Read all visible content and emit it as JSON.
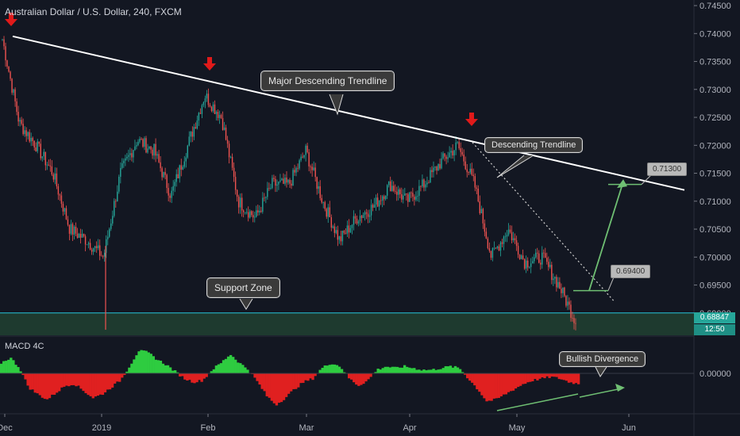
{
  "header": {
    "title": "Australian Dollar / U.S. Dollar, 240, FXCM"
  },
  "macd": {
    "title": "MACD 4C",
    "zero_label": "0.00000"
  },
  "price_axis": {
    "ticks": [
      "0.74500",
      "0.74000",
      "0.73500",
      "0.73000",
      "0.72500",
      "0.72000",
      "0.71500",
      "0.71000",
      "0.70500",
      "0.70000",
      "0.69500",
      "0.69000"
    ],
    "last_price": "0.68847",
    "countdown": "12:50"
  },
  "time_axis": {
    "labels": [
      "Dec",
      "2019",
      "Feb",
      "Mar",
      "Apr",
      "May",
      "Jun"
    ]
  },
  "annotations": {
    "major_trendline": "Major Descending Trendline",
    "descending_trendline": "Descending Trendline",
    "support_zone": "Support Zone",
    "bullish_divergence": "Bullish Divergence",
    "target_1": "0.69400",
    "target_2": "0.71300"
  },
  "colors": {
    "background": "#131722",
    "bull": "#26a69a",
    "bear": "#ef5350",
    "macd_up": "#2ecc40",
    "macd_down": "#e02020",
    "support_zone": "#1e3a2f",
    "arrow": "#6fbf73",
    "marker": "#e01a1a"
  },
  "chart_data": [
    {
      "type": "candlestick",
      "title": "Australian Dollar / U.S. Dollar, 240, FXCM",
      "ylim": [
        0.686,
        0.746
      ],
      "x": [
        "Dec",
        "2019",
        "Feb",
        "Mar",
        "Apr",
        "May",
        "Jun"
      ],
      "series": [
        {
          "values": [
            {
              "x": "Dec",
              "y": 0.739
            },
            {
              "x": "Dec",
              "y": 0.724
            },
            {
              "x": "Dec",
              "y": 0.72
            },
            {
              "x": "Dec",
              "y": 0.715
            },
            {
              "x": "Dec",
              "y": 0.705
            },
            {
              "x": "Dec",
              "y": 0.703
            },
            {
              "x": "2019",
              "y": 0.7
            },
            {
              "x": "2019",
              "y": 0.715
            },
            {
              "x": "2019",
              "y": 0.721
            },
            {
              "x": "2019",
              "y": 0.719
            },
            {
              "x": "2019",
              "y": 0.711
            },
            {
              "x": "2019",
              "y": 0.72
            },
            {
              "x": "Feb",
              "y": 0.729
            },
            {
              "x": "Feb",
              "y": 0.725
            },
            {
              "x": "Feb",
              "y": 0.71
            },
            {
              "x": "Feb",
              "y": 0.707
            },
            {
              "x": "Feb",
              "y": 0.713
            },
            {
              "x": "Feb",
              "y": 0.713
            },
            {
              "x": "Mar",
              "y": 0.719
            },
            {
              "x": "Mar",
              "y": 0.71
            },
            {
              "x": "Mar",
              "y": 0.703
            },
            {
              "x": "Mar",
              "y": 0.707
            },
            {
              "x": "Mar",
              "y": 0.709
            },
            {
              "x": "Mar",
              "y": 0.713
            },
            {
              "x": "Apr",
              "y": 0.71
            },
            {
              "x": "Apr",
              "y": 0.713
            },
            {
              "x": "Apr",
              "y": 0.717
            },
            {
              "x": "Apr",
              "y": 0.72
            },
            {
              "x": "Apr",
              "y": 0.713
            },
            {
              "x": "Apr",
              "y": 0.7
            },
            {
              "x": "May",
              "y": 0.705
            },
            {
              "x": "May",
              "y": 0.699
            },
            {
              "x": "May",
              "y": 0.7
            },
            {
              "x": "May",
              "y": 0.695
            },
            {
              "x": "May",
              "y": 0.6885
            }
          ]
        }
      ],
      "annotations": [
        "Major Descending Trendline",
        "Descending Trendline",
        "Support Zone",
        "0.69400",
        "0.71300"
      ]
    },
    {
      "type": "bar",
      "title": "MACD 4C",
      "y_zero_label": "0.00000",
      "series": [
        {
          "values": [
            0.6,
            0.9,
            0.3,
            -0.8,
            -1.2,
            -1.5,
            -1.1,
            -0.7,
            -0.6,
            -1.0,
            -1.4,
            -1.2,
            -0.8,
            -0.4,
            0.4,
            1.3,
            1.2,
            0.8,
            0.5,
            0.1,
            -0.3,
            -0.5,
            -0.4,
            0.2,
            0.6,
            1.1,
            0.6,
            0.2,
            -0.5,
            -1.3,
            -1.8,
            -1.4,
            -0.9,
            -0.5,
            -0.3,
            0.3,
            0.6,
            0.4,
            -0.3,
            -0.7,
            -0.4,
            0.2,
            0.4,
            0.3,
            0.4,
            0.3,
            0.2,
            0.2,
            0.3,
            0.4,
            0.3,
            -0.3,
            -0.9,
            -1.6,
            -1.5,
            -1.2,
            -0.9,
            -0.6,
            -0.4,
            -0.3,
            -0.2,
            -0.3,
            -0.5,
            -0.6
          ]
        }
      ]
    }
  ]
}
